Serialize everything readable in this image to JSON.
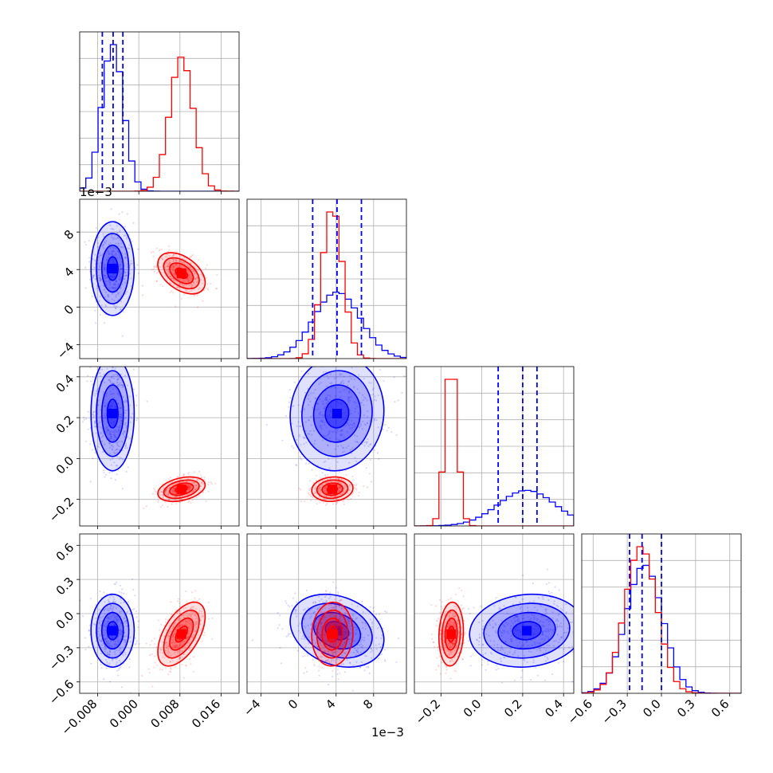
{
  "chart_data": {
    "type": "corner",
    "parameters": [
      {
        "ticks": [
          -0.008,
          0.0,
          0.008,
          0.016
        ],
        "tick_labels": [
          "−0.008",
          "0.000",
          "0.008",
          "0.016"
        ],
        "range": [
          -0.0115,
          0.0195
        ]
      },
      {
        "ticks": [
          -4,
          0,
          4,
          8
        ],
        "tick_labels": [
          "−4",
          "0",
          "4",
          "8"
        ],
        "range": [
          -5.5,
          11.5
        ],
        "offset_label": "1e−3"
      },
      {
        "ticks": [
          -0.2,
          0.0,
          0.2,
          0.4
        ],
        "tick_labels": [
          "−0.2",
          "0.0",
          "0.2",
          "0.4"
        ],
        "range": [
          -0.33,
          0.45
        ]
      },
      {
        "ticks": [
          -0.6,
          -0.3,
          0.0,
          0.3,
          0.6
        ],
        "tick_labels": [
          "−0.6",
          "−0.3",
          "0.0",
          "0.3",
          "0.6"
        ],
        "range": [
          -0.7,
          0.7
        ]
      }
    ],
    "series": [
      {
        "color": "#0000ff",
        "means": [
          -0.0051,
          4.1,
          0.22,
          -0.15
        ],
        "stds": [
          0.0021,
          2.5,
          0.14,
          0.16
        ],
        "corr": [
          [
            1,
            0,
            0,
            0
          ],
          [
            0,
            1,
            0.05,
            -0.25
          ],
          [
            0,
            0.05,
            1,
            0.1
          ],
          [
            0,
            -0.25,
            0.1,
            1
          ]
        ],
        "quantiles_1d": [
          [
            -0.0071,
            -0.005,
            -0.0031
          ],
          [
            1.5,
            4.1,
            6.7
          ],
          [
            0.08,
            0.2,
            0.27
          ],
          [
            -0.28,
            -0.17,
            0.0
          ]
        ]
      },
      {
        "color": "#ff0000",
        "means": [
          0.0083,
          3.6,
          -0.15,
          -0.18
        ],
        "stds": [
          0.0023,
          1.1,
          0.03,
          0.14
        ],
        "corr": [
          [
            1,
            -0.45,
            0.35,
            0.55
          ],
          [
            -0.45,
            1,
            0.1,
            0.05
          ],
          [
            0.35,
            0.1,
            1,
            0.1
          ],
          [
            0.55,
            0.05,
            0.1,
            1
          ]
        ],
        "quantiles_1d": []
      }
    ],
    "offset_labels": {
      "row1_y": "1e−3",
      "col1_x": "1e−3"
    }
  }
}
